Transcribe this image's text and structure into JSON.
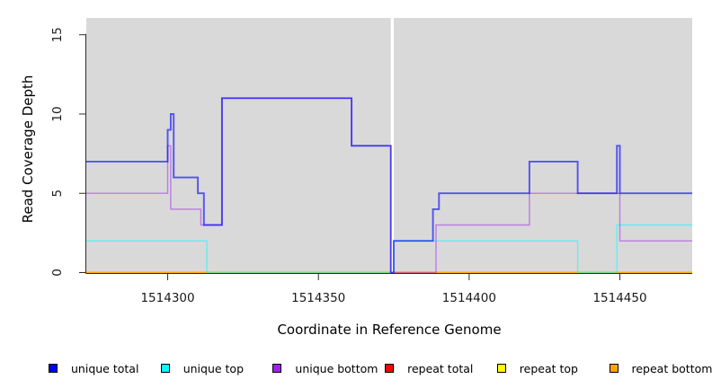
{
  "axes": {
    "x_label": "Coordinate in Reference Genome",
    "y_label": "Read Coverage Depth",
    "x_range": [
      1514273,
      1514474
    ],
    "y_range": [
      0,
      16.06
    ],
    "x_ticks": [
      {
        "value": 1514300,
        "label": "1514300"
      },
      {
        "value": 1514350,
        "label": "1514350"
      },
      {
        "value": 1514400,
        "label": "1514400"
      },
      {
        "value": 1514450,
        "label": "1514450"
      }
    ],
    "y_ticks": [
      {
        "value": 0,
        "label": "0"
      },
      {
        "value": 5,
        "label": "5"
      },
      {
        "value": 10,
        "label": "10"
      },
      {
        "value": 15,
        "label": "15"
      }
    ],
    "panel_background": "#d9d9d9",
    "axis_color": "#2b2b2b",
    "tick_label_color": "#1a1a1a"
  },
  "chart_data": {
    "type": "line",
    "style": "step-after",
    "title": "",
    "xlabel": "Coordinate in Reference Genome",
    "ylabel": "Read Coverage Depth",
    "xlim": [
      1514273,
      1514474
    ],
    "ylim": [
      0,
      16.06
    ],
    "grid": false,
    "gap_region": {
      "x0": 1514374,
      "x1": 1514375,
      "color": "#ffffff"
    },
    "series": [
      {
        "name": "repeat total",
        "legend_color": "#ff0000",
        "stroke": "rgba(255,0,0,0.85)",
        "width": 1.4,
        "breakpoints": [
          [
            1514273,
            0
          ]
        ]
      },
      {
        "name": "repeat top",
        "legend_color": "#ffff00",
        "stroke": "rgba(255,255,0,0.85)",
        "width": 1.4,
        "breakpoints": [
          [
            1514273,
            0
          ]
        ]
      },
      {
        "name": "repeat bottom",
        "legend_color": "#ffa500",
        "stroke": "rgba(255,165,0,0.92)",
        "width": 1.8,
        "breakpoints": [
          [
            1514273,
            0
          ]
        ]
      },
      {
        "name": "unique top",
        "legend_color": "#00ffff",
        "stroke": "rgba(0,255,255,0.55)",
        "width": 1.4,
        "breakpoints": [
          [
            1514273,
            2
          ],
          [
            1514313,
            0
          ],
          [
            1514375,
            2
          ],
          [
            1514436,
            0
          ],
          [
            1514449,
            3
          ]
        ]
      },
      {
        "name": "unique bottom",
        "legend_color": "#a020f0",
        "stroke": "rgba(160,32,240,0.5)",
        "width": 1.4,
        "breakpoints": [
          [
            1514273,
            5
          ],
          [
            1514300,
            8
          ],
          [
            1514301,
            4
          ],
          [
            1514311,
            3
          ],
          [
            1514318,
            11
          ],
          [
            1514361,
            8
          ],
          [
            1514374,
            0
          ],
          [
            1514389,
            3
          ],
          [
            1514420,
            5
          ],
          [
            1514450,
            2
          ]
        ]
      },
      {
        "name": "unique total",
        "legend_color": "#0000ff",
        "stroke": "rgba(0,0,255,0.62)",
        "width": 1.9,
        "breakpoints": [
          [
            1514273,
            7
          ],
          [
            1514300,
            9
          ],
          [
            1514301,
            10
          ],
          [
            1514302,
            6
          ],
          [
            1514310,
            5
          ],
          [
            1514312,
            3
          ],
          [
            1514318,
            11
          ],
          [
            1514361,
            8
          ],
          [
            1514374,
            0
          ],
          [
            1514375,
            2
          ],
          [
            1514388,
            4
          ],
          [
            1514390,
            5
          ],
          [
            1514420,
            7
          ],
          [
            1514436,
            5
          ],
          [
            1514449,
            8
          ],
          [
            1514450,
            5
          ]
        ]
      }
    ]
  },
  "legend": {
    "items": [
      {
        "label": "unique total",
        "color": "#0000ff"
      },
      {
        "label": "unique top",
        "color": "#00ffff"
      },
      {
        "label": "unique bottom",
        "color": "#a020f0"
      },
      {
        "label": "repeat total",
        "color": "#ff0000"
      },
      {
        "label": "repeat top",
        "color": "#ffff00"
      },
      {
        "label": "repeat bottom",
        "color": "#ffa500"
      }
    ]
  }
}
